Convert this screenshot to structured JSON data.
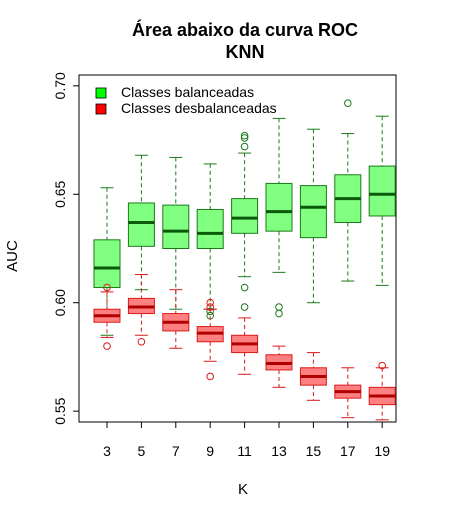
{
  "chart_data": {
    "type": "boxplot",
    "title": "Área abaixo da curva ROC",
    "subtitle": "KNN",
    "xlabel": "K",
    "ylabel": "AUC",
    "categories": [
      "3",
      "5",
      "7",
      "9",
      "11",
      "13",
      "15",
      "17",
      "19"
    ],
    "ylim": [
      0.545,
      0.705
    ],
    "yticks": [
      0.55,
      0.6,
      0.65,
      0.7
    ],
    "ytick_labels": [
      "0.55",
      "0.60",
      "0.65",
      "0.70"
    ],
    "legend": {
      "position": "top-left",
      "entries": [
        {
          "label": "Classes balanceadas",
          "color": "#00ff00"
        },
        {
          "label": "Classes desbalanceadas",
          "color": "#ff0000"
        }
      ]
    },
    "series": [
      {
        "name": "Classes balanceadas",
        "fill": "#80ff80",
        "stroke": "#1a7a1a",
        "median_color": "#0a5a0a",
        "boxes": [
          {
            "min": 0.585,
            "q1": 0.607,
            "median": 0.616,
            "q3": 0.629,
            "max": 0.653,
            "outliers": []
          },
          {
            "min": 0.606,
            "q1": 0.626,
            "median": 0.637,
            "q3": 0.646,
            "max": 0.668,
            "outliers": []
          },
          {
            "min": 0.597,
            "q1": 0.625,
            "median": 0.633,
            "q3": 0.645,
            "max": 0.667,
            "outliers": []
          },
          {
            "min": 0.597,
            "q1": 0.625,
            "median": 0.632,
            "q3": 0.643,
            "max": 0.664,
            "outliers": [
              0.596,
              0.594
            ]
          },
          {
            "min": 0.612,
            "q1": 0.632,
            "median": 0.639,
            "q3": 0.648,
            "max": 0.669,
            "outliers": [
              0.677,
              0.676,
              0.672,
              0.607,
              0.598
            ]
          },
          {
            "min": 0.614,
            "q1": 0.633,
            "median": 0.642,
            "q3": 0.655,
            "max": 0.685,
            "outliers": [
              0.598,
              0.595
            ]
          },
          {
            "min": 0.6,
            "q1": 0.63,
            "median": 0.644,
            "q3": 0.654,
            "max": 0.68,
            "outliers": []
          },
          {
            "min": 0.61,
            "q1": 0.637,
            "median": 0.648,
            "q3": 0.659,
            "max": 0.678,
            "outliers": [
              0.692
            ]
          },
          {
            "min": 0.608,
            "q1": 0.64,
            "median": 0.65,
            "q3": 0.663,
            "max": 0.686,
            "outliers": []
          }
        ]
      },
      {
        "name": "Classes desbalanceadas",
        "fill": "#ff8080",
        "stroke": "#d91a1a",
        "median_color": "#b00000",
        "boxes": [
          {
            "min": 0.584,
            "q1": 0.591,
            "median": 0.594,
            "q3": 0.597,
            "max": 0.605,
            "outliers": [
              0.607,
              0.58
            ]
          },
          {
            "min": 0.585,
            "q1": 0.595,
            "median": 0.598,
            "q3": 0.602,
            "max": 0.613,
            "outliers": [
              0.582
            ]
          },
          {
            "min": 0.579,
            "q1": 0.587,
            "median": 0.591,
            "q3": 0.595,
            "max": 0.606,
            "outliers": []
          },
          {
            "min": 0.573,
            "q1": 0.582,
            "median": 0.586,
            "q3": 0.589,
            "max": 0.597,
            "outliers": [
              0.6,
              0.598,
              0.566
            ]
          },
          {
            "min": 0.567,
            "q1": 0.577,
            "median": 0.581,
            "q3": 0.585,
            "max": 0.593,
            "outliers": []
          },
          {
            "min": 0.561,
            "q1": 0.569,
            "median": 0.572,
            "q3": 0.576,
            "max": 0.58,
            "outliers": []
          },
          {
            "min": 0.555,
            "q1": 0.562,
            "median": 0.566,
            "q3": 0.57,
            "max": 0.577,
            "outliers": []
          },
          {
            "min": 0.547,
            "q1": 0.556,
            "median": 0.559,
            "q3": 0.562,
            "max": 0.57,
            "outliers": []
          },
          {
            "min": 0.546,
            "q1": 0.553,
            "median": 0.557,
            "q3": 0.561,
            "max": 0.57,
            "outliers": [
              0.571
            ]
          }
        ]
      }
    ]
  }
}
